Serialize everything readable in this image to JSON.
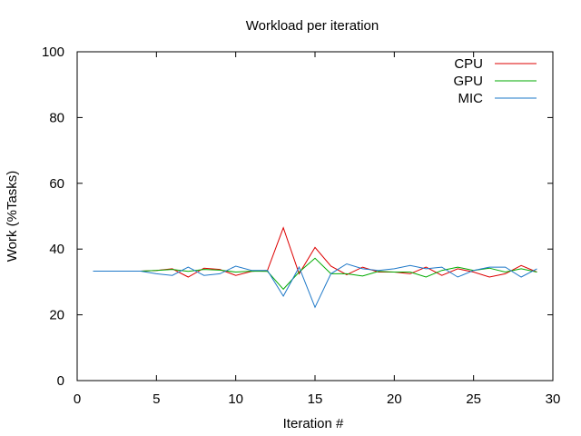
{
  "chart_data": {
    "type": "line",
    "title": "Workload per iteration",
    "xlabel": "Iteration #",
    "ylabel": "Work (%Tasks)",
    "xlim": [
      0,
      30
    ],
    "ylim": [
      0,
      100
    ],
    "xticks": [
      0,
      5,
      10,
      15,
      20,
      25,
      30
    ],
    "yticks": [
      0,
      20,
      40,
      60,
      80,
      100
    ],
    "xtick_labels": [
      "0",
      "5",
      "10",
      "15",
      "20",
      "25",
      "30"
    ],
    "ytick_labels": [
      "0",
      "20",
      "40",
      "60",
      "80",
      "100"
    ],
    "grid": false,
    "legend_position": "top-right",
    "x": [
      1,
      2,
      3,
      4,
      5,
      6,
      7,
      8,
      9,
      10,
      11,
      12,
      13,
      14,
      15,
      16,
      17,
      18,
      19,
      20,
      21,
      22,
      23,
      24,
      25,
      26,
      27,
      28,
      29
    ],
    "series": [
      {
        "name": "CPU",
        "color": "#dd0000",
        "values": [
          33.3,
          33.3,
          33.3,
          33.3,
          33.5,
          34.0,
          31.5,
          34.2,
          33.8,
          32.0,
          33.2,
          33.5,
          46.5,
          32.5,
          40.5,
          34.8,
          32.2,
          34.5,
          33.0,
          33.0,
          32.5,
          34.5,
          32.0,
          34.0,
          33.0,
          31.5,
          32.5,
          35.0,
          33.0
        ]
      },
      {
        "name": "GPU",
        "color": "#00aa00",
        "values": [
          33.3,
          33.3,
          33.3,
          33.3,
          33.5,
          33.8,
          33.2,
          33.8,
          33.6,
          33.0,
          33.3,
          33.2,
          27.8,
          33.0,
          37.2,
          32.5,
          32.5,
          31.8,
          33.2,
          33.0,
          33.0,
          31.5,
          33.5,
          34.5,
          33.5,
          34.2,
          33.0,
          34.0,
          33.0
        ]
      },
      {
        "name": "MIC",
        "color": "#1e78c8",
        "values": [
          33.3,
          33.3,
          33.3,
          33.3,
          32.5,
          32.0,
          34.5,
          32.0,
          32.5,
          34.8,
          33.5,
          33.5,
          25.7,
          34.5,
          22.3,
          32.5,
          35.5,
          34.0,
          33.5,
          34.0,
          35.0,
          34.0,
          34.5,
          31.5,
          33.5,
          34.5,
          34.5,
          31.5,
          34.0
        ]
      }
    ]
  }
}
